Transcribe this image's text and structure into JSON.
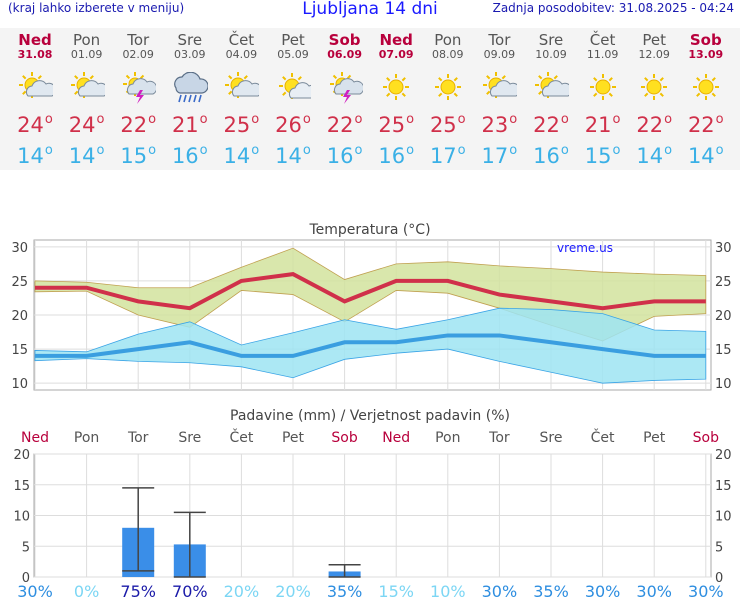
{
  "header": {
    "hint": "(kraj lahko izberete v meniju)",
    "title": "Ljubljana 14 dni",
    "updated": "Zadnja posodobitev: 31.08.2025 - 04:24"
  },
  "days": [
    {
      "name": "Ned",
      "date": "31.08",
      "weekend": true,
      "icon": "partly-cloudy-icon",
      "max": "24",
      "min": "14"
    },
    {
      "name": "Pon",
      "date": "01.09",
      "weekend": false,
      "icon": "partly-cloudy-icon",
      "max": "24",
      "min": "14"
    },
    {
      "name": "Tor",
      "date": "02.09",
      "weekend": false,
      "icon": "thunderstorm-icon",
      "max": "22",
      "min": "15"
    },
    {
      "name": "Sre",
      "date": "03.09",
      "weekend": false,
      "icon": "rain-icon",
      "max": "21",
      "min": "16"
    },
    {
      "name": "Čet",
      "date": "04.09",
      "weekend": false,
      "icon": "partly-cloudy-icon",
      "max": "25",
      "min": "14"
    },
    {
      "name": "Pet",
      "date": "05.09",
      "weekend": false,
      "icon": "mostly-sunny-icon",
      "max": "26",
      "min": "14"
    },
    {
      "name": "Sob",
      "date": "06.09",
      "weekend": true,
      "icon": "thunderstorm-icon",
      "max": "22",
      "min": "16"
    },
    {
      "name": "Ned",
      "date": "07.09",
      "weekend": true,
      "icon": "sunny-icon",
      "max": "25",
      "min": "16"
    },
    {
      "name": "Pon",
      "date": "08.09",
      "weekend": false,
      "icon": "sunny-icon",
      "max": "25",
      "min": "17"
    },
    {
      "name": "Tor",
      "date": "09.09",
      "weekend": false,
      "icon": "partly-cloudy-icon",
      "max": "23",
      "min": "17"
    },
    {
      "name": "Sre",
      "date": "10.09",
      "weekend": false,
      "icon": "partly-cloudy-icon",
      "max": "22",
      "min": "16"
    },
    {
      "name": "Čet",
      "date": "11.09",
      "weekend": false,
      "icon": "sunny-icon",
      "max": "21",
      "min": "15"
    },
    {
      "name": "Pet",
      "date": "12.09",
      "weekend": false,
      "icon": "sunny-icon",
      "max": "22",
      "min": "14"
    },
    {
      "name": "Sob",
      "date": "13.09",
      "weekend": true,
      "icon": "sunny-icon",
      "max": "22",
      "min": "14"
    }
  ],
  "chart_data": [
    {
      "type": "line",
      "title": "Temperatura (°C)",
      "watermark": "vreme.us",
      "ylim": [
        9,
        31
      ],
      "yticks": [
        10,
        15,
        20,
        25,
        30
      ],
      "grid": true,
      "series": [
        {
          "name": "max",
          "color": "#d0304a",
          "values": [
            24,
            24,
            22,
            21,
            25,
            26,
            22,
            25,
            25,
            23,
            22,
            21,
            22,
            22
          ]
        },
        {
          "name": "max-range-upper",
          "color": "#c6d99a",
          "values": [
            25,
            24.8,
            24,
            24,
            27,
            29.8,
            25.2,
            27.5,
            27.8,
            27.2,
            26.8,
            26.3,
            26,
            25.8
          ]
        },
        {
          "name": "max-range-lower",
          "color": "#c6d99a",
          "values": [
            23.4,
            23.5,
            20,
            18.2,
            23.6,
            23,
            19,
            23.6,
            23.2,
            21,
            18.5,
            16.2,
            19.8,
            20.2
          ]
        },
        {
          "name": "min",
          "color": "#3a9ee0",
          "values": [
            14,
            14,
            15,
            16,
            14,
            14,
            16,
            16,
            17,
            17,
            16,
            15,
            14,
            14
          ]
        },
        {
          "name": "min-range-upper",
          "color": "#a8e4f2",
          "values": [
            14.8,
            14.6,
            17.2,
            19,
            15.6,
            17.4,
            19.3,
            17.9,
            19.3,
            21,
            20.8,
            20.2,
            17.8,
            17.6
          ]
        },
        {
          "name": "min-range-lower",
          "color": "#a8e4f2",
          "values": [
            13.3,
            13.6,
            13.2,
            13,
            12.4,
            10.8,
            13.5,
            14.4,
            15,
            13.2,
            11.6,
            10,
            10.4,
            10.6
          ]
        }
      ]
    },
    {
      "type": "bar",
      "title": "Padavine (mm) / Verjetnost padavin (%)",
      "ylim": [
        0,
        20
      ],
      "yticks": [
        0,
        5,
        10,
        15,
        20
      ],
      "categories": [
        "Ned",
        "Pon",
        "Tor",
        "Sre",
        "Čet",
        "Pet",
        "Sob",
        "Ned",
        "Pon",
        "Tor",
        "Sre",
        "Čet",
        "Pet",
        "Sob"
      ],
      "values": [
        0,
        0,
        8,
        5.3,
        0,
        0,
        0.9,
        0,
        0,
        0,
        0,
        0,
        0,
        0
      ],
      "error_high": [
        null,
        null,
        14.5,
        10.5,
        null,
        null,
        2,
        null,
        null,
        null,
        null,
        null,
        null,
        null
      ],
      "error_low": [
        null,
        null,
        1,
        0,
        null,
        null,
        0,
        null,
        null,
        null,
        null,
        null,
        null,
        null
      ],
      "probability": [
        "30%",
        "0%",
        "75%",
        "70%",
        "20%",
        "20%",
        "35%",
        "15%",
        "10%",
        "30%",
        "35%",
        "30%",
        "30%",
        "30%"
      ]
    }
  ]
}
